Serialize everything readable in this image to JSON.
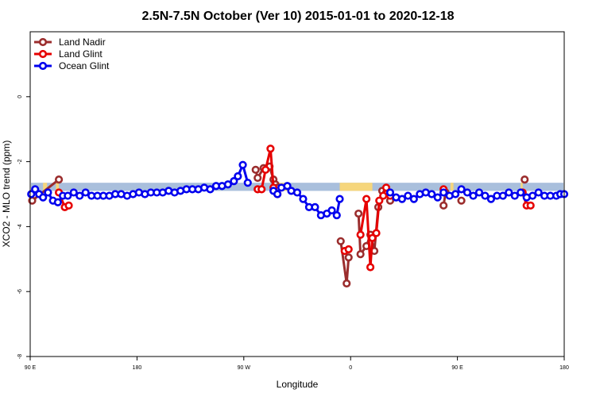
{
  "chart_data": {
    "type": "line",
    "title": "2.5N-7.5N October (Ver 10)   2015-01-01 to 2020-12-18",
    "xlabel": "Longitude",
    "ylabel": "XCO2 - MLO trend (ppm)",
    "xlim": [
      -90,
      180
    ],
    "ylim": [
      -8,
      2
    ],
    "x_ticks": [
      {
        "value": -90,
        "label": "90 E"
      },
      {
        "value": -36,
        "label": "180"
      },
      {
        "value": 18,
        "label": "90 W"
      },
      {
        "value": 72,
        "label": "0"
      },
      {
        "value": 126,
        "label": "90 E"
      },
      {
        "value": 180,
        "label": "180"
      }
    ],
    "y_ticks": [
      {
        "value": 0,
        "label": "0"
      },
      {
        "value": -2,
        "label": "-2"
      },
      {
        "value": -4,
        "label": "-4"
      },
      {
        "value": -6,
        "label": "-6"
      },
      {
        "value": -8,
        "label": "-8"
      }
    ],
    "legend_position": "top-left",
    "grid": false,
    "surface_band": {
      "y_range": [
        -2.9,
        -2.65
      ],
      "ocean_color": "#a9bfdc",
      "land_color": "#f6d67c",
      "land_segments": [
        [
          -83.5,
          -81.5
        ],
        [
          -77,
          -75.5
        ],
        [
          35,
          40
        ],
        [
          66.5,
          83
        ],
        [
          122.5,
          124
        ],
        [
          158,
          159
        ]
      ]
    },
    "series": [
      {
        "name": "Land Nadir",
        "color": "#9b2d2d",
        "segments": [
          [
            [
              -89,
              -3.2
            ],
            [
              -75.5,
              -2.55
            ]
          ],
          [
            [
              24,
              -2.25
            ],
            [
              25,
              -2.5
            ],
            [
              28,
              -2.2
            ],
            [
              31,
              -2.15
            ],
            [
              33,
              -2.55
            ],
            [
              34,
              -2.7
            ],
            [
              35,
              -2.8
            ]
          ],
          [
            [
              67,
              -4.45
            ],
            [
              70,
              -5.75
            ],
            [
              71,
              -4.95
            ]
          ],
          [
            [
              76,
              -3.6
            ],
            [
              77,
              -4.85
            ],
            [
              80,
              -4.6
            ],
            [
              82,
              -4.25
            ],
            [
              84,
              -4.75
            ],
            [
              86,
              -3.4
            ],
            [
              88,
              -2.9
            ],
            [
              90,
              -2.95
            ],
            [
              92,
              -3.2
            ]
          ],
          [
            [
              119,
              -3.35
            ],
            [
              120,
              -2.95
            ]
          ],
          [
            [
              128,
              -3.2
            ]
          ],
          [
            [
              160,
              -2.55
            ]
          ]
        ]
      },
      {
        "name": "Land Glint",
        "color": "#e60000",
        "segments": [
          [
            [
              -75.5,
              -2.95
            ],
            [
              -72.5,
              -3.4
            ],
            [
              -70.5,
              -3.35
            ]
          ],
          [
            [
              25,
              -2.85
            ],
            [
              27,
              -2.85
            ],
            [
              29,
              -2.25
            ],
            [
              31.5,
              -1.6
            ],
            [
              33,
              -2.8
            ],
            [
              35,
              -3.0
            ]
          ],
          [
            [
              69,
              -4.75
            ],
            [
              71,
              -4.7
            ]
          ],
          [
            [
              77,
              -4.25
            ],
            [
              80,
              -3.15
            ],
            [
              82,
              -5.25
            ],
            [
              83,
              -4.35
            ],
            [
              85,
              -4.2
            ],
            [
              86.5,
              -3.2
            ],
            [
              88.5,
              -3.05
            ],
            [
              90,
              -2.8
            ],
            [
              92,
              -3.05
            ]
          ],
          [
            [
              119,
              -2.85
            ]
          ],
          [
            [
              159,
              -2.95
            ],
            [
              161,
              -3.35
            ],
            [
              163,
              -3.35
            ]
          ]
        ]
      },
      {
        "name": "Ocean Glint",
        "color": "#0000ee",
        "segments": [
          [
            [
              -89.5,
              -3.0
            ],
            [
              -87.5,
              -2.85
            ],
            [
              -85.5,
              -3.0
            ],
            [
              -83.5,
              -3.1
            ],
            [
              -81,
              -2.95
            ],
            [
              -78.5,
              -3.2
            ],
            [
              -76,
              -3.25
            ],
            [
              -73.5,
              -3.05
            ],
            [
              -71,
              -3.05
            ],
            [
              -68,
              -2.95
            ],
            [
              -65,
              -3.05
            ],
            [
              -62,
              -2.95
            ],
            [
              -59,
              -3.05
            ],
            [
              -56,
              -3.05
            ],
            [
              -53,
              -3.05
            ],
            [
              -50,
              -3.05
            ],
            [
              -47,
              -3.0
            ],
            [
              -44,
              -3.0
            ],
            [
              -41,
              -3.05
            ],
            [
              -38,
              -3.0
            ],
            [
              -35,
              -2.95
            ],
            [
              -32,
              -3.0
            ],
            [
              -29,
              -2.95
            ],
            [
              -26,
              -2.95
            ],
            [
              -23,
              -2.95
            ],
            [
              -20,
              -2.9
            ],
            [
              -17,
              -2.95
            ],
            [
              -14,
              -2.9
            ],
            [
              -11,
              -2.85
            ],
            [
              -8,
              -2.85
            ],
            [
              -5,
              -2.85
            ],
            [
              -2,
              -2.8
            ],
            [
              1,
              -2.85
            ],
            [
              4,
              -2.75
            ],
            [
              7,
              -2.75
            ],
            [
              10,
              -2.7
            ],
            [
              13,
              -2.6
            ],
            [
              15,
              -2.45
            ],
            [
              17.5,
              -2.1
            ],
            [
              20,
              -2.65
            ]
          ],
          [
            [
              33,
              -2.9
            ],
            [
              35,
              -3.0
            ],
            [
              37,
              -2.8
            ],
            [
              40,
              -2.75
            ],
            [
              42,
              -2.9
            ],
            [
              45,
              -2.95
            ],
            [
              48,
              -3.15
            ],
            [
              51,
              -3.4
            ],
            [
              54,
              -3.4
            ],
            [
              57,
              -3.65
            ],
            [
              60,
              -3.6
            ],
            [
              62.5,
              -3.5
            ],
            [
              65,
              -3.65
            ],
            [
              66.5,
              -3.15
            ]
          ],
          [
            [
              92,
              -2.95
            ],
            [
              95,
              -3.1
            ],
            [
              98,
              -3.15
            ],
            [
              101,
              -3.05
            ],
            [
              104,
              -3.15
            ],
            [
              107,
              -3.0
            ],
            [
              110,
              -2.95
            ],
            [
              113,
              -3.0
            ],
            [
              116,
              -3.1
            ],
            [
              119,
              -2.95
            ],
            [
              122,
              -3.05
            ],
            [
              125,
              -3.0
            ],
            [
              128,
              -2.85
            ],
            [
              131,
              -2.95
            ],
            [
              134,
              -3.05
            ],
            [
              137,
              -2.95
            ],
            [
              140,
              -3.05
            ],
            [
              143,
              -3.15
            ],
            [
              146,
              -3.05
            ],
            [
              149,
              -3.05
            ],
            [
              152,
              -2.95
            ],
            [
              155,
              -3.05
            ],
            [
              158,
              -2.95
            ],
            [
              161,
              -3.1
            ],
            [
              164,
              -3.05
            ],
            [
              167,
              -2.95
            ],
            [
              170,
              -3.05
            ],
            [
              173,
              -3.05
            ],
            [
              176,
              -3.05
            ],
            [
              178,
              -3.0
            ],
            [
              180,
              -3.0
            ]
          ]
        ]
      }
    ]
  }
}
